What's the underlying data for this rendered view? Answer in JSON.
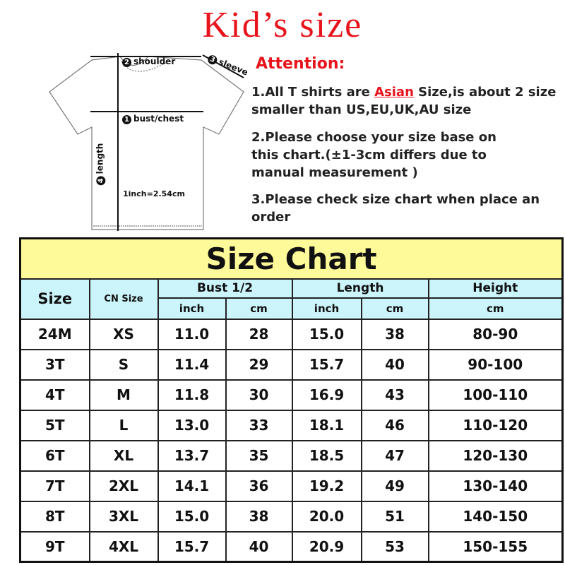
{
  "title": "Kid’s size",
  "diagram": {
    "shoulder": "shoulder",
    "sleeve": "sleeve",
    "bust": "bust/chest",
    "length": "length",
    "conversion": "1inch=2.54cm",
    "n1": "1",
    "n2": "2",
    "n3": "3",
    "n4": "4"
  },
  "attention": {
    "heading": "Attention:",
    "note1_pre": "1.All T shirts are ",
    "note1_highlight": "Asian",
    "note1_post": " Size,is about 2 size smaller than US,EU,UK,AU size",
    "note2": "2.Please choose your size base on this chart.(±1-3cm differs due to manual measurement )",
    "note3": "3.Please check size chart when place an order"
  },
  "table": {
    "caption": "Size Chart",
    "headers": {
      "size": "Size",
      "cn_size": "CN Size",
      "bust": "Bust 1/2",
      "length": "Length",
      "height": "Height",
      "inch": "inch",
      "cm": "cm"
    },
    "rows": [
      [
        "24M",
        "XS",
        "11.0",
        "28",
        "15.0",
        "38",
        "80-90"
      ],
      [
        "3T",
        "S",
        "11.4",
        "29",
        "15.7",
        "40",
        "90-100"
      ],
      [
        "4T",
        "M",
        "11.8",
        "30",
        "16.9",
        "43",
        "100-110"
      ],
      [
        "5T",
        "L",
        "13.0",
        "33",
        "18.1",
        "46",
        "110-120"
      ],
      [
        "6T",
        "XL",
        "13.7",
        "35",
        "18.5",
        "47",
        "120-130"
      ],
      [
        "7T",
        "2XL",
        "14.1",
        "36",
        "19.2",
        "49",
        "130-140"
      ],
      [
        "8T",
        "3XL",
        "15.0",
        "38",
        "20.0",
        "51",
        "140-150"
      ],
      [
        "9T",
        "4XL",
        "15.7",
        "40",
        "20.9",
        "53",
        "150-155"
      ]
    ]
  },
  "colors": {
    "title": "#e8141c",
    "caption_bg": "#fffa99",
    "header_bg": "#ccf5fb"
  }
}
